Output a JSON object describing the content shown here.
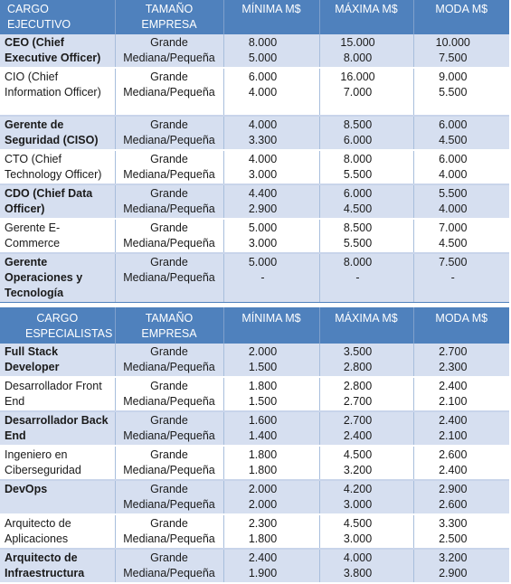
{
  "table1": {
    "headers": [
      "CARGO EJECUTIVO",
      "TAMAÑO EMPRESA",
      "MÍNIMA M$",
      "MÁXIMA M$",
      "MODA M$"
    ],
    "rows": [
      {
        "cargo": "CEO (Chief Executive Officer)",
        "tamano": [
          "Grande",
          "Mediana/Pequeña"
        ],
        "minima": [
          "8.000",
          "5.000"
        ],
        "maxima": [
          "15.000",
          "8.000"
        ],
        "moda": [
          "10.000",
          "7.500"
        ]
      },
      {
        "cargo": "CIO (Chief Information Officer)",
        "tamano": [
          "Grande",
          "Mediana/Pequeña"
        ],
        "minima": [
          "6.000",
          "4.000"
        ],
        "maxima": [
          "16.000",
          "7.000"
        ],
        "moda": [
          "9.000",
          "5.500"
        ]
      },
      {
        "cargo": "Gerente de Seguridad (CISO)",
        "tamano": [
          "Grande",
          "Mediana/Pequeña"
        ],
        "minima": [
          "4.000",
          "3.300"
        ],
        "maxima": [
          "8.500",
          "6.000"
        ],
        "moda": [
          "6.000",
          "4.500"
        ]
      },
      {
        "cargo": "CTO (Chief Technology Officer)",
        "tamano": [
          "Grande",
          "Mediana/Pequeña"
        ],
        "minima": [
          "4.000",
          "3.000"
        ],
        "maxima": [
          "8.000",
          "5.500"
        ],
        "moda": [
          "6.000",
          "4.000"
        ]
      },
      {
        "cargo": "CDO (Chief Data Officer)",
        "tamano": [
          "Grande",
          "Mediana/Pequeña"
        ],
        "minima": [
          "4.400",
          "2.900"
        ],
        "maxima": [
          "6.000",
          "4.500"
        ],
        "moda": [
          "5.500",
          "4.000"
        ]
      },
      {
        "cargo": "Gerente E-Commerce",
        "tamano": [
          "Grande",
          "Mediana/Pequeña"
        ],
        "minima": [
          "5.000",
          "3.000"
        ],
        "maxima": [
          "8.500",
          "5.500"
        ],
        "moda": [
          "7.000",
          "4.500"
        ]
      },
      {
        "cargo": "Gerente Operaciones y Tecnología",
        "tamano": [
          "Grande",
          "Mediana/Pequeña"
        ],
        "minima": [
          "5.000",
          "-"
        ],
        "maxima": [
          "8.000",
          "-"
        ],
        "moda": [
          "7.500",
          "-"
        ]
      }
    ]
  },
  "table2": {
    "headers": [
      "CARGO ESPECIALISTAS",
      "TAMAÑO EMPRESA",
      "MÍNIMA M$",
      "MÁXIMA M$",
      "MODA M$"
    ],
    "rows": [
      {
        "cargo": "Full Stack Developer",
        "tamano": [
          "Grande",
          "Mediana/Pequeña"
        ],
        "minima": [
          "2.000",
          "1.500"
        ],
        "maxima": [
          "3.500",
          "2.800"
        ],
        "moda": [
          "2.700",
          "2.300"
        ]
      },
      {
        "cargo": "Desarrollador Front End",
        "tamano": [
          "Grande",
          "Mediana/Pequeña"
        ],
        "minima": [
          "1.800",
          "1.500"
        ],
        "maxima": [
          "2.800",
          "2.700"
        ],
        "moda": [
          "2.400",
          "2.100"
        ]
      },
      {
        "cargo": "Desarrollador Back End",
        "tamano": [
          "Grande",
          "Mediana/Pequeña"
        ],
        "minima": [
          "1.600",
          "1.400"
        ],
        "maxima": [
          "2.700",
          "2.400"
        ],
        "moda": [
          "2.400",
          "2.100"
        ]
      },
      {
        "cargo": "Ingeniero en Ciberseguridad",
        "tamano": [
          "Grande",
          "Mediana/Pequeña"
        ],
        "minima": [
          "1.800",
          "1.800"
        ],
        "maxima": [
          "4.500",
          "3.200"
        ],
        "moda": [
          "2.600",
          "2.400"
        ]
      },
      {
        "cargo": "DevOps",
        "tamano": [
          "Grande",
          "Mediana/Pequeña"
        ],
        "minima": [
          "2.000",
          "2.000"
        ],
        "maxima": [
          "4.200",
          "3.000"
        ],
        "moda": [
          "2.900",
          "2.600"
        ]
      },
      {
        "cargo": "Arquitecto de Aplicaciones",
        "tamano": [
          "Grande",
          "Mediana/Pequeña"
        ],
        "minima": [
          "2.300",
          "1.800"
        ],
        "maxima": [
          "4.500",
          "3.000"
        ],
        "moda": [
          "3.300",
          "2.500"
        ]
      },
      {
        "cargo": "Arquitecto de Infraestructura",
        "tamano": [
          "Grande",
          "Mediana/Pequeña"
        ],
        "minima": [
          "2.400",
          "1.900"
        ],
        "maxima": [
          "4.000",
          "3.800"
        ],
        "moda": [
          "3.200",
          "2.900"
        ]
      }
    ]
  },
  "colors": {
    "header_bg": "#4f81bd",
    "band_bg": "#d6dff0",
    "header_text": "#ffffff"
  }
}
